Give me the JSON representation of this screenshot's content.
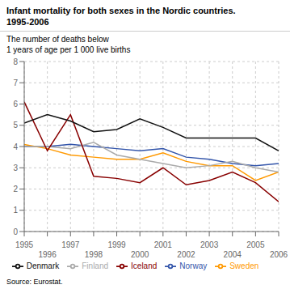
{
  "chart_data": {
    "type": "line",
    "title": "Infant mortality for both sexes in the Nordic countries.\n1995-2006",
    "ylabel": "The number of deaths below\n1 years of age per 1 000 live births",
    "annotations": [
      "Source: Eurostat."
    ],
    "x": [
      1995,
      1996,
      1997,
      1998,
      1999,
      2000,
      2001,
      2002,
      2003,
      2004,
      2005,
      2006
    ],
    "series": [
      {
        "name": "Norway",
        "color": "#3355aa",
        "values": [
          4.0,
          4.0,
          4.1,
          4.0,
          3.9,
          3.8,
          3.9,
          3.5,
          3.4,
          3.2,
          3.1,
          3.2
        ]
      },
      {
        "name": "Sweden",
        "color": "#ff9900",
        "values": [
          4.1,
          3.9,
          3.6,
          3.5,
          3.4,
          3.4,
          3.7,
          3.3,
          3.1,
          3.1,
          2.4,
          2.8
        ]
      },
      {
        "name": "Finland",
        "color": "#aaaaaa",
        "values": [
          4.0,
          4.0,
          3.9,
          4.2,
          3.6,
          3.4,
          3.2,
          3.0,
          3.1,
          3.3,
          3.0,
          2.8
        ]
      },
      {
        "name": "Iceland",
        "color": "#880000",
        "values": [
          6.1,
          3.8,
          5.5,
          2.6,
          2.5,
          2.3,
          3.0,
          2.2,
          2.4,
          2.8,
          2.3,
          1.4
        ]
      },
      {
        "name": "Denmark",
        "color": "#111111",
        "values": [
          5.1,
          5.5,
          5.2,
          4.7,
          4.8,
          5.3,
          4.9,
          4.4,
          4.4,
          4.4,
          4.4,
          3.8
        ]
      }
    ],
    "xlim": [
      1995,
      2006
    ],
    "xticks": [
      1995,
      1996,
      1997,
      1998,
      1999,
      2000,
      2001,
      2002,
      2003,
      2004,
      2005,
      2006
    ],
    "ylim": [
      0,
      8
    ],
    "yticks": [
      0,
      1,
      2,
      3,
      4,
      5,
      6,
      7,
      8
    ],
    "grid": true,
    "legend": "bottom"
  }
}
